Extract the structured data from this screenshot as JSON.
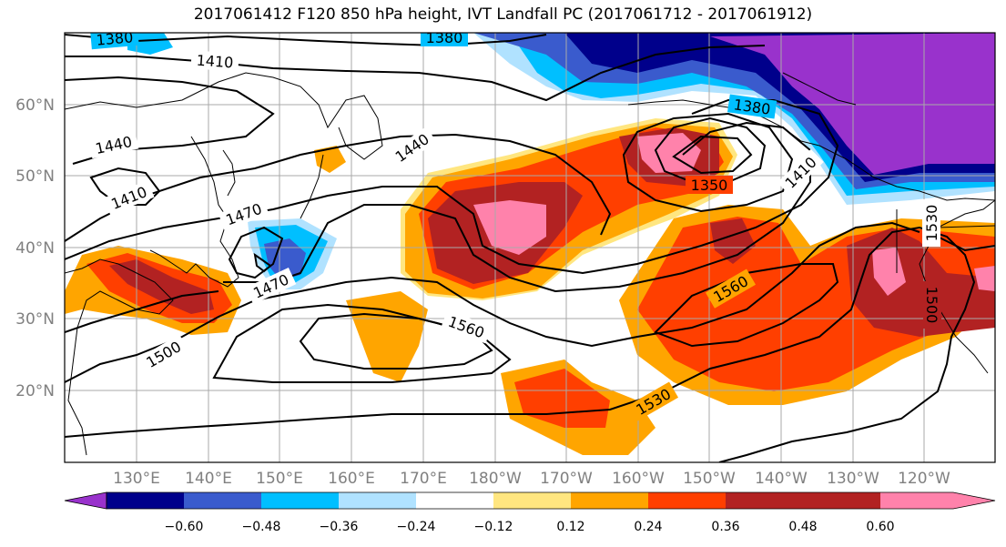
{
  "title": "2017061412 F120 850 hPa height, IVT Landfall PC (2017061712 - 2017061912)",
  "lat_labels": [
    "60°N",
    "50°N",
    "40°N",
    "30°N",
    "20°N"
  ],
  "lon_labels": [
    "130°E",
    "140°E",
    "150°E",
    "160°E",
    "170°E",
    "180°W",
    "170°W",
    "160°W",
    "150°W",
    "140°W",
    "130°W",
    "120°W"
  ],
  "contour_labels": [
    "1380",
    "1380",
    "1410",
    "1380",
    "1440",
    "1410",
    "1440",
    "1470",
    "1350",
    "1410",
    "1470",
    "1530",
    "1560",
    "1500",
    "1560",
    "1530",
    "1500"
  ],
  "colorbar": {
    "colors": [
      "#9932cc",
      "#00008b",
      "#3a5bcd",
      "#00bfff",
      "#b0e2ff",
      "#ffffff",
      "#ffe680",
      "#ffa500",
      "#ff3f00",
      "#b22222",
      "#ff82ab"
    ],
    "labels": [
      "−0.60",
      "−0.48",
      "−0.36",
      "−0.24",
      "−0.12",
      "0.12",
      "0.24",
      "0.36",
      "0.48",
      "0.60"
    ]
  }
}
